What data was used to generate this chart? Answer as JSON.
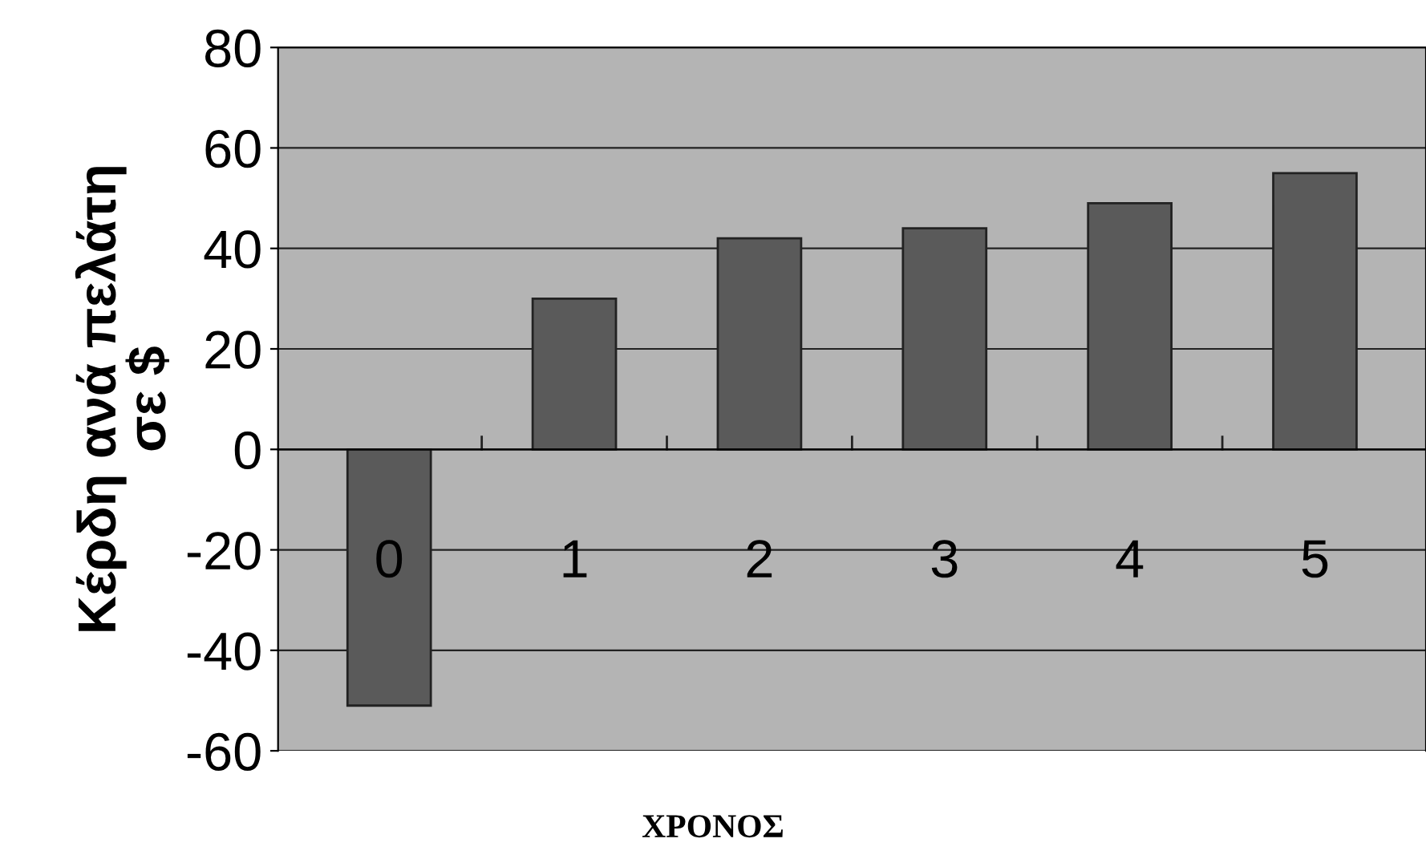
{
  "chart_data": {
    "type": "bar",
    "xlabel": "ΧΡΟΝΟΣ",
    "ylabel": "Κέρδη ανά πελάτη\nσε $",
    "categories": [
      "0",
      "1",
      "2",
      "3",
      "4",
      "5"
    ],
    "values": [
      -51,
      30,
      42,
      44,
      49,
      55
    ],
    "color": "#5a5a5a",
    "ylim": [
      -60,
      80
    ],
    "yticks": [
      -60,
      -40,
      -20,
      0,
      20,
      40,
      60,
      80
    ],
    "grid": "y",
    "legend": false
  }
}
